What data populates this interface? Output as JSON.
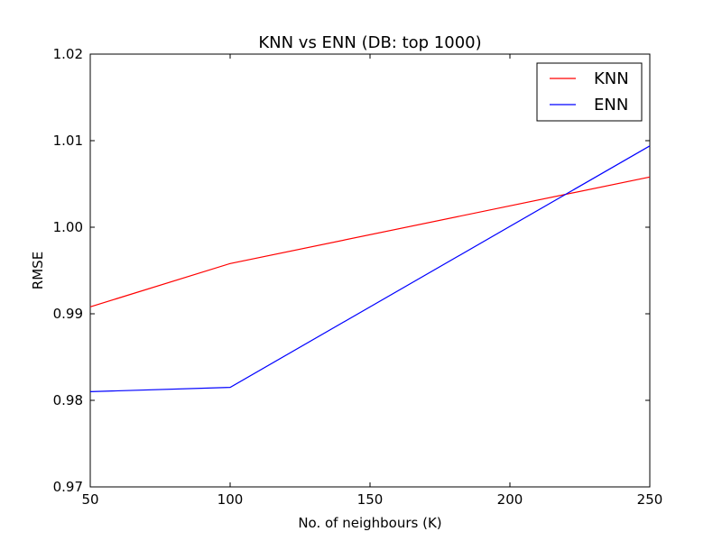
{
  "chart_data": {
    "type": "line",
    "title": "KNN vs ENN (DB: top 1000)",
    "xlabel": "No. of neighbours (K)",
    "ylabel": "RMSE",
    "xlim": [
      50,
      250
    ],
    "ylim": [
      0.97,
      1.02
    ],
    "x_ticks": [
      50,
      100,
      150,
      200,
      250
    ],
    "x_tick_labels": [
      "50",
      "100",
      "150",
      "200",
      "250"
    ],
    "y_ticks": [
      0.97,
      0.98,
      0.99,
      1.0,
      1.01,
      1.02
    ],
    "y_tick_labels": [
      "0.97",
      "0.98",
      "0.99",
      "1.00",
      "1.01",
      "1.02"
    ],
    "grid": false,
    "legend_position": "top-right",
    "series": [
      {
        "name": "KNN",
        "color": "#ff0000",
        "x": [
          50,
          100,
          250
        ],
        "y": [
          0.9908,
          0.9958,
          1.0058
        ]
      },
      {
        "name": "ENN",
        "color": "#0000ff",
        "x": [
          50,
          100,
          250
        ],
        "y": [
          0.981,
          0.9815,
          1.0094
        ]
      }
    ]
  }
}
